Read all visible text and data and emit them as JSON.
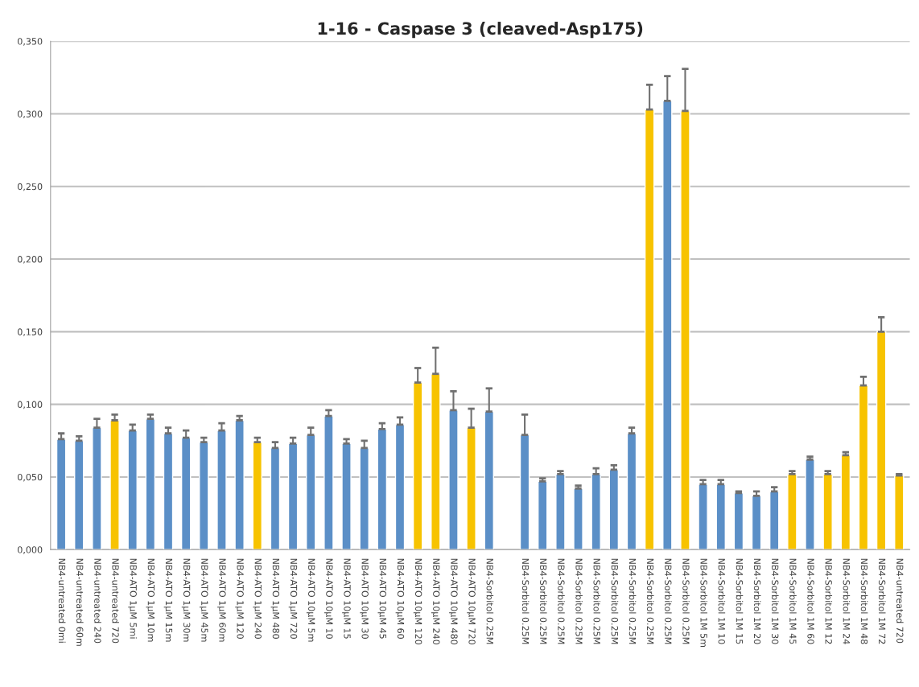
{
  "chart_data": {
    "type": "bar",
    "title": "1-16 - Caspase 3 (cleaved-Asp175)",
    "categories": [
      "NB4-untreated 0mi",
      "NB4-untreated 60m",
      "NB4-untreated 240",
      "NB4-untreated 720",
      "NB4-ATO 1µM 5mi",
      "NB4-ATO 1µM 10m",
      "NB4-ATO 1µM 15m",
      "NB4-ATO 1µM 30m",
      "NB4-ATO 1µM 45m",
      "NB4-ATO 1µM 60m",
      "NB4-ATO 1µM 120",
      "NB4-ATO 1µM 240",
      "NB4-ATO 1µM 480",
      "NB4-ATO 1µM 720",
      "NB4-ATO 10µM 5m",
      "NB4-ATO 10µM 10",
      "NB4-ATO 10µM 15",
      "NB4-ATO 10µM 30",
      "NB4-ATO 10µM 45",
      "NB4-ATO 10µM 60",
      "NB4-ATO 10µM 120",
      "NB4-ATO 10µM 240",
      "NB4-ATO 10µM 480",
      "NB4-ATO 10µM 720",
      "NB4-Sorbitol 0.25M",
      null,
      "NB4-Sorbitol 0.25M",
      "NB4-Sorbitol 0.25M",
      "NB4-Sorbitol 0.25M",
      "NB4-Sorbitol 0.25M",
      "NB4-Sorbitol 0.25M",
      "NB4-Sorbitol 0.25M",
      "NB4-Sorbitol 0.25M",
      "NB4-Sorbitol 0.25M",
      "NB4-Sorbitol 0.25M",
      "NB4-Sorbitol 0.25M",
      "NB4-Sorbitol 1M 5m",
      "NB4-Sorbitol 1M 10",
      "NB4-Sorbitol 1M 15",
      "NB4-Sorbitol 1M 20",
      "NB4-Sorbitol 1M 30",
      "NB4-Sorbitol 1M 45",
      "NB4-Sorbitol 1M 60",
      "NB4-Sorbitol 1M 12",
      "NB4-Sorbitol 1M 24",
      "NB4-Sorbitol 1M 48",
      "NB4-Sorbitol 1M 72",
      "NB4-untreated 720"
    ],
    "values": [
      0.076,
      0.075,
      0.084,
      0.089,
      0.082,
      0.09,
      0.08,
      0.077,
      0.074,
      0.082,
      0.089,
      0.074,
      0.07,
      0.073,
      0.079,
      0.092,
      0.073,
      0.07,
      0.083,
      0.086,
      0.115,
      0.121,
      0.096,
      0.084,
      0.095,
      null,
      0.079,
      0.047,
      0.052,
      0.042,
      0.052,
      0.055,
      0.08,
      0.303,
      0.309,
      0.302,
      0.045,
      0.045,
      0.039,
      0.037,
      0.04,
      0.052,
      0.062,
      0.052,
      0.065,
      0.113,
      0.15,
      0.051
    ],
    "errors": [
      [
        0.076,
        0.08
      ],
      [
        0.075,
        0.078
      ],
      [
        0.084,
        0.09
      ],
      [
        0.089,
        0.093
      ],
      [
        0.082,
        0.086
      ],
      [
        0.09,
        0.093
      ],
      [
        0.08,
        0.084
      ],
      [
        0.077,
        0.082
      ],
      [
        0.074,
        0.077
      ],
      [
        0.082,
        0.087
      ],
      [
        0.089,
        0.092
      ],
      [
        0.074,
        0.077
      ],
      [
        0.07,
        0.074
      ],
      [
        0.073,
        0.077
      ],
      [
        0.079,
        0.084
      ],
      [
        0.092,
        0.096
      ],
      [
        0.073,
        0.076
      ],
      [
        0.07,
        0.075
      ],
      [
        0.083,
        0.087
      ],
      [
        0.086,
        0.091
      ],
      [
        0.115,
        0.125
      ],
      [
        0.121,
        0.139
      ],
      [
        0.096,
        0.109
      ],
      [
        0.084,
        0.097
      ],
      [
        0.095,
        0.111
      ],
      null,
      [
        0.079,
        0.093
      ],
      [
        0.047,
        0.049
      ],
      [
        0.052,
        0.054
      ],
      [
        0.042,
        0.044
      ],
      [
        0.052,
        0.056
      ],
      [
        0.055,
        0.058
      ],
      [
        0.08,
        0.084
      ],
      [
        0.303,
        0.32
      ],
      [
        0.309,
        0.326
      ],
      [
        0.302,
        0.331
      ],
      [
        0.045,
        0.048
      ],
      [
        0.045,
        0.048
      ],
      [
        0.039,
        0.04
      ],
      [
        0.037,
        0.04
      ],
      [
        0.04,
        0.043
      ],
      [
        0.052,
        0.054
      ],
      [
        0.062,
        0.064
      ],
      [
        0.052,
        0.054
      ],
      [
        0.065,
        0.067
      ],
      [
        0.113,
        0.119
      ],
      [
        0.15,
        0.16
      ],
      [
        0.051,
        0.052
      ]
    ],
    "colors": [
      "#5b8fc7",
      "#5b8fc7",
      "#5b8fc7",
      "#f7c300",
      "#5b8fc7",
      "#5b8fc7",
      "#5b8fc7",
      "#5b8fc7",
      "#5b8fc7",
      "#5b8fc7",
      "#5b8fc7",
      "#f7c300",
      "#5b8fc7",
      "#5b8fc7",
      "#5b8fc7",
      "#5b8fc7",
      "#5b8fc7",
      "#5b8fc7",
      "#5b8fc7",
      "#5b8fc7",
      "#f7c300",
      "#f7c300",
      "#5b8fc7",
      "#f7c300",
      "#5b8fc7",
      "#5b8fc7",
      "#5b8fc7",
      "#5b8fc7",
      "#5b8fc7",
      "#5b8fc7",
      "#5b8fc7",
      "#5b8fc7",
      "#5b8fc7",
      "#f7c300",
      "#5b8fc7",
      "#f7c300",
      "#5b8fc7",
      "#5b8fc7",
      "#5b8fc7",
      "#5b8fc7",
      "#5b8fc7",
      "#f7c300",
      "#5b8fc7",
      "#f7c300",
      "#f7c300",
      "#f7c300",
      "#f7c300",
      "#f7c300"
    ],
    "ylim": [
      0,
      0.35
    ],
    "yticks": [
      {
        "value": 0,
        "label": "0,000"
      },
      {
        "value": 0.05,
        "label": "0,050"
      },
      {
        "value": 0.1,
        "label": "0,100"
      },
      {
        "value": 0.15,
        "label": "0,150"
      },
      {
        "value": 0.2,
        "label": "0,200"
      },
      {
        "value": 0.25,
        "label": "0,250"
      },
      {
        "value": 0.3,
        "label": "0,300"
      },
      {
        "value": 0.35,
        "label": "0,350"
      }
    ],
    "grid": "y"
  }
}
